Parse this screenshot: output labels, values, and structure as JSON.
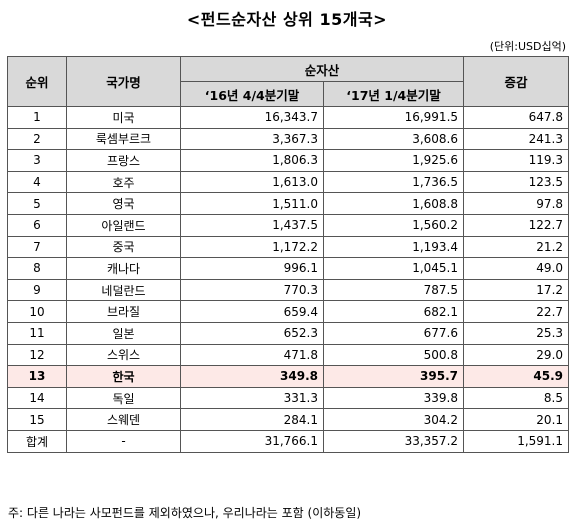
{
  "title": "<펀드순자산 상위 15개국>",
  "unit": "(단위:USD십억)",
  "header": {
    "rank": "순위",
    "country": "국가명",
    "net_assets": "순자산",
    "q4_2016": "‘16년  4/4분기말",
    "q1_2017": "‘17년  1/4분기말",
    "change": "증감"
  },
  "rows": [
    {
      "rank": "1",
      "country": "미국",
      "q4_2016": "16,343.7",
      "q1_2017": "16,991.5",
      "change": "647.8"
    },
    {
      "rank": "2",
      "country": "룩셈부르크",
      "q4_2016": "3,367.3",
      "q1_2017": "3,608.6",
      "change": "241.3"
    },
    {
      "rank": "3",
      "country": "프랑스",
      "q4_2016": "1,806.3",
      "q1_2017": "1,925.6",
      "change": "119.3"
    },
    {
      "rank": "4",
      "country": "호주",
      "q4_2016": "1,613.0",
      "q1_2017": "1,736.5",
      "change": "123.5"
    },
    {
      "rank": "5",
      "country": "영국",
      "q4_2016": "1,511.0",
      "q1_2017": "1,608.8",
      "change": "97.8"
    },
    {
      "rank": "6",
      "country": "아일랜드",
      "q4_2016": "1,437.5",
      "q1_2017": "1,560.2",
      "change": "122.7"
    },
    {
      "rank": "7",
      "country": "중국",
      "q4_2016": "1,172.2",
      "q1_2017": "1,193.4",
      "change": "21.2"
    },
    {
      "rank": "8",
      "country": "캐나다",
      "q4_2016": "996.1",
      "q1_2017": "1,045.1",
      "change": "49.0"
    },
    {
      "rank": "9",
      "country": "네덜란드",
      "q4_2016": "770.3",
      "q1_2017": "787.5",
      "change": "17.2"
    },
    {
      "rank": "10",
      "country": "브라질",
      "q4_2016": "659.4",
      "q1_2017": "682.1",
      "change": "22.7"
    },
    {
      "rank": "11",
      "country": "일본",
      "q4_2016": "652.3",
      "q1_2017": "677.6",
      "change": "25.3"
    },
    {
      "rank": "12",
      "country": "스위스",
      "q4_2016": "471.8",
      "q1_2017": "500.8",
      "change": "29.0"
    },
    {
      "rank": "13",
      "country": "한국",
      "q4_2016": "349.8",
      "q1_2017": "395.7",
      "change": "45.9"
    },
    {
      "rank": "14",
      "country": "독일",
      "q4_2016": "331.3",
      "q1_2017": "339.8",
      "change": "8.5"
    },
    {
      "rank": "15",
      "country": "스웨덴",
      "q4_2016": "284.1",
      "q1_2017": "304.2",
      "change": "20.1"
    }
  ],
  "highlight_row": 13,
  "highlight_color": "#fde9e7",
  "total": {
    "rank": "합계",
    "country": "-",
    "q4_2016": "31,766.1",
    "q1_2017": "33,357.2",
    "change": "1,591.1"
  },
  "note": "주: 다른 나라는 사모펀드를 제외하였으나, 우리나라는 포함 (이하동일)"
}
